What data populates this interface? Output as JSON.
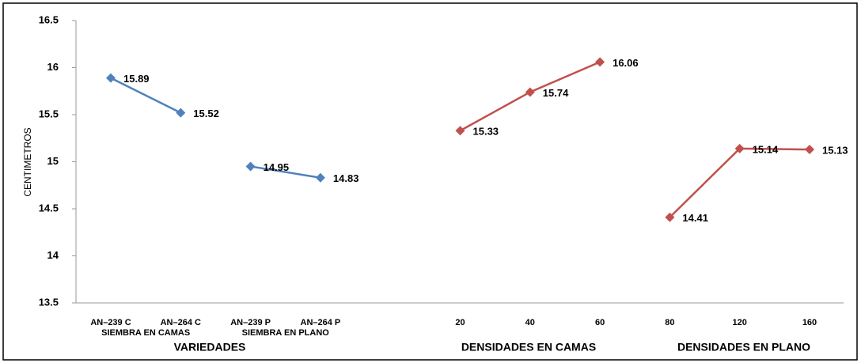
{
  "chart_data": {
    "type": "line",
    "y_label": "CENTIMETROS",
    "categories": [
      "AN–239 C",
      "AN–264 C",
      "AN–239 P",
      "AN–264 P",
      null,
      "20",
      "40",
      "60",
      "80",
      "120",
      "160"
    ],
    "sub_labels": [
      "SIEMBRA EN CAMAS",
      "SIEMBRA EN PLANO"
    ],
    "group_labels": [
      "VARIEDADES",
      "DENSIDADES EN CAMAS",
      "DENSIDADES EN PLANO"
    ],
    "series": [
      {
        "color": "#4f81bd",
        "values": [
          15.89,
          15.52,
          null,
          null,
          null,
          null,
          null,
          null,
          null,
          null,
          null
        ]
      },
      {
        "color": "#4f81bd",
        "values": [
          null,
          null,
          14.95,
          14.83,
          null,
          null,
          null,
          null,
          null,
          null,
          null
        ]
      },
      {
        "color": "#c0504d",
        "values": [
          null,
          null,
          null,
          null,
          null,
          15.33,
          15.74,
          16.06,
          null,
          null,
          null
        ]
      },
      {
        "color": "#c0504d",
        "values": [
          null,
          null,
          null,
          null,
          null,
          null,
          null,
          null,
          14.41,
          15.14,
          15.13
        ]
      }
    ],
    "ylim": [
      13.5,
      16.5
    ],
    "yticks": [
      13.5,
      14,
      14.5,
      15,
      15.5,
      16,
      16.5
    ],
    "data_labels": true
  }
}
